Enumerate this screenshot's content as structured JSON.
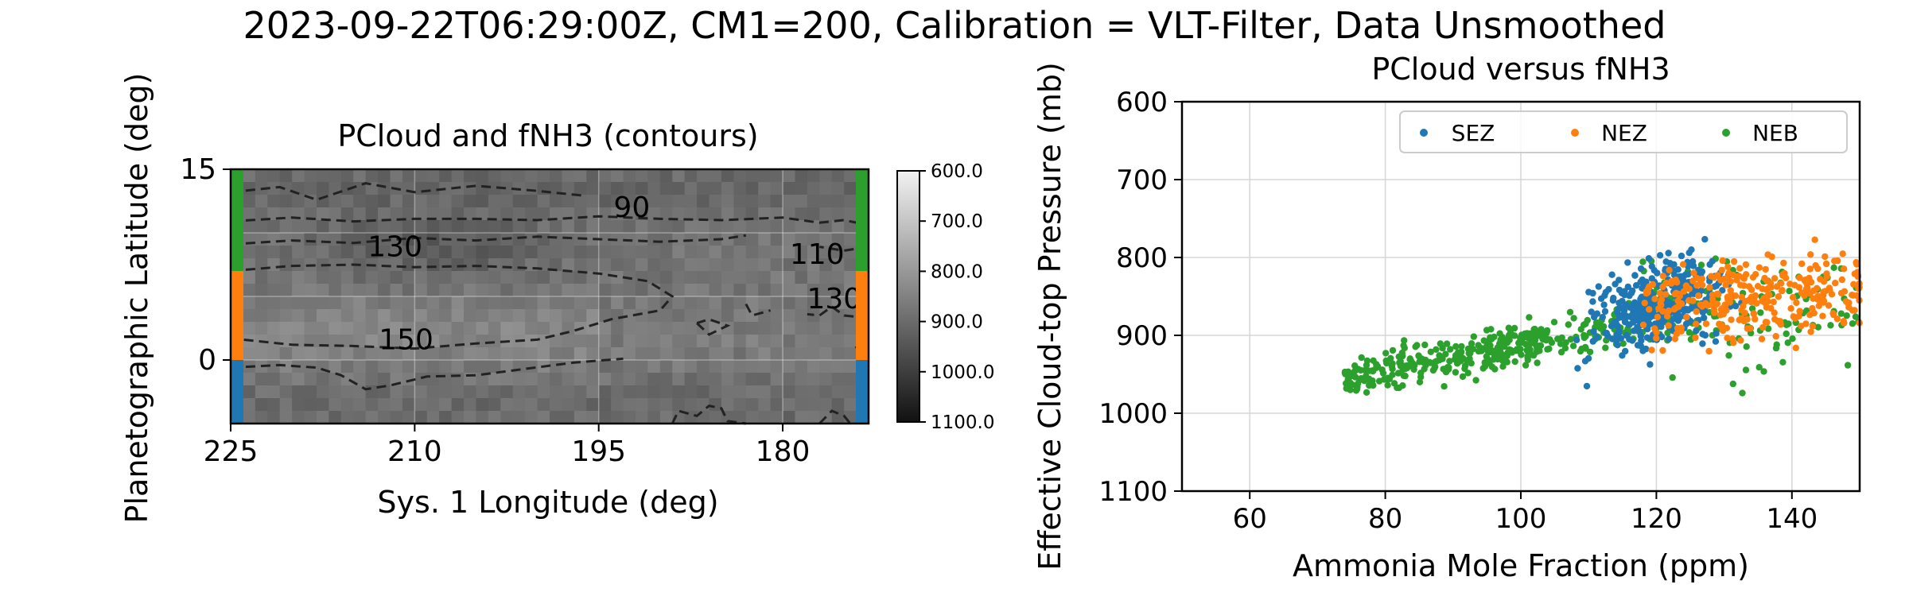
{
  "figure": {
    "suptitle": "2023-09-22T06:29:00Z, CM1=200, Calibration = VLT-Filter, Data Unsmoothed"
  },
  "colors": {
    "SEZ": "#1f77b4",
    "NEZ": "#ff7f0e",
    "NEB": "#2ca02c",
    "contour": "#222222",
    "cmap_light": "#f2f2f2",
    "cmap_dark": "#111111"
  },
  "chart_data": [
    {
      "type": "heatmap",
      "title": "PCloud and fNH3 (contours)",
      "xlabel": "Sys. 1 Longitude (deg)",
      "ylabel": "Planetographic Latitude (deg)",
      "xlim": [
        225,
        173
      ],
      "ylim": [
        -5,
        15
      ],
      "xticks": [
        "225",
        "210",
        "195",
        "180"
      ],
      "yticks": [
        "15",
        "0"
      ],
      "grid": true,
      "colorbar": {
        "range": [
          600.0,
          1100.0
        ],
        "ticks": [
          "600.0",
          "700.0",
          "800.0",
          "900.0",
          "1000.0",
          "1100.0"
        ],
        "reversed": true
      },
      "zone_bars": [
        {
          "zone": "NEB",
          "lat": [
            7,
            15
          ]
        },
        {
          "zone": "NEZ",
          "lat": [
            0,
            7
          ]
        },
        {
          "zone": "SEZ",
          "lat": [
            -5,
            0
          ]
        }
      ],
      "contour_labels": [
        {
          "text": "90",
          "lon": 192.3,
          "lat": 12.0
        },
        {
          "text": "130",
          "lon": 211.6,
          "lat": 8.9
        },
        {
          "text": "110",
          "lon": 177.2,
          "lat": 8.3
        },
        {
          "text": "130",
          "lon": 175.8,
          "lat": 4.8
        },
        {
          "text": "150",
          "lon": 210.7,
          "lat": 1.6
        }
      ],
      "contours": [
        [
          [
            225,
            13.2
          ],
          [
            221,
            13.6
          ],
          [
            218,
            12.6
          ],
          [
            214,
            13.9
          ],
          [
            210,
            13.2
          ],
          [
            205,
            13.7
          ],
          [
            200,
            13.3
          ],
          [
            196,
            12.9
          ]
        ],
        [
          [
            225,
            10.9
          ],
          [
            220,
            11.2
          ],
          [
            215,
            10.9
          ],
          [
            210,
            11.1
          ],
          [
            205,
            11.1
          ],
          [
            200,
            11.0
          ],
          [
            195,
            11.3
          ],
          [
            190,
            11.1
          ],
          [
            185,
            11.0
          ],
          [
            180,
            11.2
          ],
          [
            177,
            10.8
          ],
          [
            175,
            11.0
          ],
          [
            173,
            10.6
          ]
        ],
        [
          [
            225,
            9.1
          ],
          [
            220,
            9.4
          ],
          [
            215,
            9.2
          ],
          [
            210,
            9.6
          ],
          [
            205,
            9.4
          ],
          [
            200,
            9.7
          ],
          [
            195,
            9.5
          ],
          [
            190,
            9.3
          ],
          [
            185,
            9.5
          ],
          [
            183,
            9.8
          ]
        ],
        [
          [
            173,
            8.9
          ],
          [
            175,
            8.6
          ],
          [
            177,
            8.9
          ]
        ],
        [
          [
            225,
            7.0
          ],
          [
            220,
            7.4
          ],
          [
            215,
            7.5
          ],
          [
            210,
            7.3
          ],
          [
            205,
            7.4
          ],
          [
            200,
            7.2
          ],
          [
            195,
            6.8
          ],
          [
            191,
            6.2
          ],
          [
            189,
            5.0
          ],
          [
            190,
            3.9
          ],
          [
            194,
            3.2
          ],
          [
            197,
            2.3
          ],
          [
            200,
            1.6
          ],
          [
            205,
            1.3
          ],
          [
            210,
            0.9
          ],
          [
            215,
            1.1
          ],
          [
            220,
            1.2
          ],
          [
            224,
            1.6
          ],
          [
            225,
            1.4
          ]
        ],
        [
          [
            225,
            -0.6
          ],
          [
            221,
            -0.4
          ],
          [
            218,
            -0.6
          ],
          [
            216,
            -1.2
          ],
          [
            214,
            -2.3
          ],
          [
            212,
            -2.0
          ],
          [
            209,
            -1.3
          ],
          [
            205,
            -1.2
          ],
          [
            201,
            -0.7
          ],
          [
            197,
            -0.2
          ],
          [
            193,
            0.1
          ]
        ],
        [
          [
            173,
            3.3
          ],
          [
            175,
            3.5
          ],
          [
            176,
            4.2
          ],
          [
            177,
            3.5
          ],
          [
            178,
            3.6
          ]
        ],
        [
          [
            183,
            4.4
          ],
          [
            182.5,
            3.5
          ],
          [
            181,
            3.9
          ]
        ],
        [
          [
            187,
            2.9
          ],
          [
            186,
            2.0
          ],
          [
            184.5,
            2.7
          ],
          [
            186,
            3.2
          ],
          [
            187,
            2.9
          ]
        ],
        [
          [
            173,
            1.9
          ],
          [
            174,
            1.0
          ],
          [
            173.5,
            0.2
          ]
        ],
        [
          [
            189,
            -5
          ],
          [
            188.5,
            -4.0
          ],
          [
            187,
            -4.4
          ],
          [
            186,
            -3.6
          ],
          [
            185,
            -3.8
          ],
          [
            184.5,
            -4.8
          ],
          [
            183,
            -5
          ]
        ],
        [
          [
            177,
            -5
          ],
          [
            176,
            -4.0
          ],
          [
            175,
            -4.4
          ],
          [
            174.5,
            -5
          ]
        ]
      ]
    },
    {
      "type": "scatter",
      "title": "PCloud versus fNH3",
      "xlabel": "Ammonia Mole Fraction (ppm)",
      "ylabel": "Effective Cloud-top Pressure (mb)",
      "xlim": [
        50,
        150
      ],
      "ylim": [
        1100,
        600
      ],
      "xticks": [
        "60",
        "80",
        "100",
        "120",
        "140"
      ],
      "yticks": [
        "600",
        "700",
        "800",
        "900",
        "1000",
        "1100"
      ],
      "grid": true,
      "legend": {
        "placement": "top-right",
        "columns": 3
      },
      "series": [
        {
          "name": "SEZ",
          "color": "#1f77b4",
          "cluster": {
            "x_range": [
              105,
              135
            ],
            "centroid": [
              120,
              860
            ],
            "spread": [
              7,
              40
            ]
          }
        },
        {
          "name": "NEZ",
          "color": "#ff7f0e",
          "cluster": {
            "x_range": [
              115,
              150
            ],
            "centroid": [
              132,
              855
            ],
            "spread": [
              8,
              35
            ]
          }
        },
        {
          "name": "NEB",
          "color": "#2ca02c",
          "cluster": {
            "x_range": [
              73,
              150
            ],
            "centroid": [
              95,
              890
            ],
            "spread": [
              18,
              40
            ]
          }
        }
      ]
    }
  ]
}
